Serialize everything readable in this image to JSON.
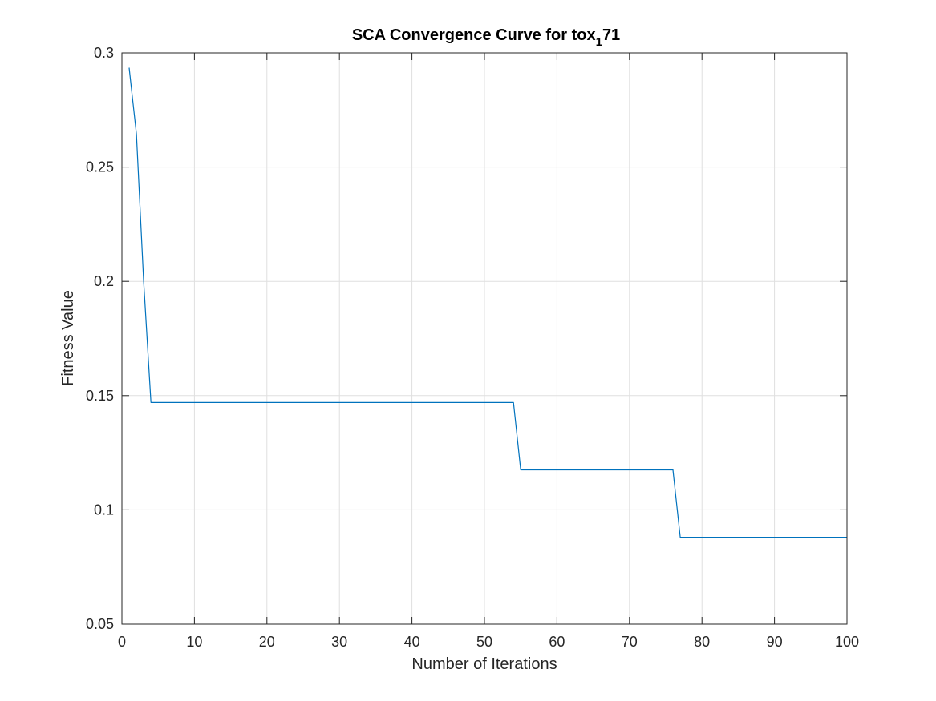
{
  "colors": {
    "background": "#ffffff",
    "axes": "#262626",
    "grid": "#dfdfdf",
    "series": "#0072bd"
  },
  "chart_data": {
    "type": "line",
    "title": {
      "main": "SCA Convergence Curve for tox",
      "subscript": "1",
      "suffix": "71"
    },
    "xlabel": "Number of Iterations",
    "ylabel": "Fitness Value",
    "xlim": [
      0,
      100
    ],
    "ylim": [
      0.05,
      0.3
    ],
    "xticks": [
      0,
      10,
      20,
      30,
      40,
      50,
      60,
      70,
      80,
      90,
      100
    ],
    "xtick_labels": [
      "0",
      "10",
      "20",
      "30",
      "40",
      "50",
      "60",
      "70",
      "80",
      "90",
      "100"
    ],
    "yticks": [
      0.05,
      0.1,
      0.15,
      0.2,
      0.25,
      0.3
    ],
    "ytick_labels": [
      "0.05",
      "0.1",
      "0.15",
      "0.2",
      "0.25",
      "0.3"
    ],
    "grid": true,
    "legend": "none",
    "series": [
      {
        "color": "#0072bd",
        "x": [
          1,
          2,
          3,
          4,
          54,
          55,
          76,
          77,
          100
        ],
        "y": [
          0.2935,
          0.2645,
          0.2,
          0.147,
          0.147,
          0.1175,
          0.1175,
          0.088,
          0.088
        ]
      }
    ]
  }
}
